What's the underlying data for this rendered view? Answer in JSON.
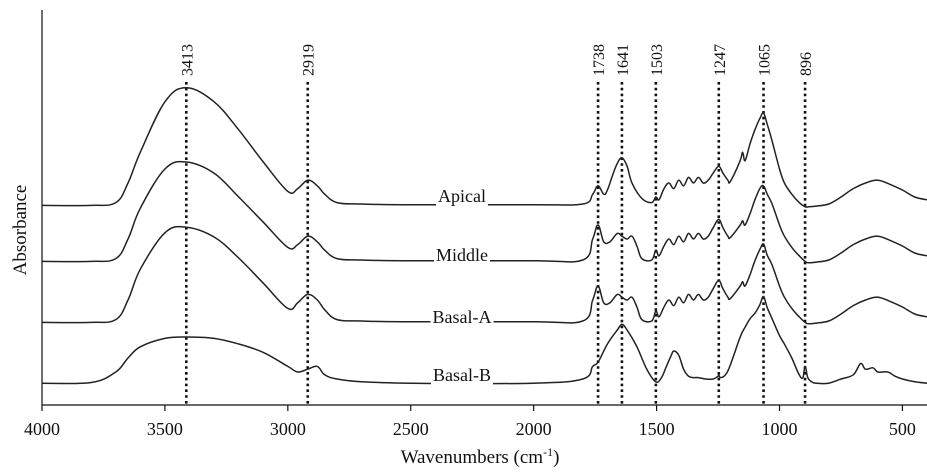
{
  "chart_data": {
    "type": "line",
    "xlabel": "Wavenumbers (cm",
    "xlabel_sup": "-1",
    "xlabel_tail": ")",
    "ylabel": "Absorbance",
    "xlim": [
      4000,
      400
    ],
    "x_reversed": true,
    "x_ticks": [
      4000,
      3500,
      3000,
      2500,
      2000,
      1500,
      1000,
      500
    ],
    "peaks": [
      3413,
      2919,
      1738,
      1641,
      1503,
      1247,
      1065,
      896
    ],
    "grid": false,
    "series": [
      {
        "name": "Apical",
        "points": [
          [
            4000,
            0.04
          ],
          [
            3800,
            0.04
          ],
          [
            3700,
            0.06
          ],
          [
            3650,
            0.2
          ],
          [
            3600,
            0.42
          ],
          [
            3500,
            0.78
          ],
          [
            3413,
            0.88
          ],
          [
            3300,
            0.78
          ],
          [
            3200,
            0.58
          ],
          [
            3100,
            0.35
          ],
          [
            3000,
            0.14
          ],
          [
            2960,
            0.16
          ],
          [
            2919,
            0.22
          ],
          [
            2880,
            0.18
          ],
          [
            2850,
            0.12
          ],
          [
            2800,
            0.06
          ],
          [
            2700,
            0.05
          ],
          [
            2500,
            0.045
          ],
          [
            2000,
            0.045
          ],
          [
            1800,
            0.05
          ],
          [
            1760,
            0.12
          ],
          [
            1738,
            0.18
          ],
          [
            1715,
            0.12
          ],
          [
            1700,
            0.15
          ],
          [
            1680,
            0.25
          ],
          [
            1660,
            0.34
          ],
          [
            1641,
            0.38
          ],
          [
            1620,
            0.32
          ],
          [
            1600,
            0.2
          ],
          [
            1560,
            0.09
          ],
          [
            1520,
            0.06
          ],
          [
            1503,
            0.1
          ],
          [
            1490,
            0.08
          ],
          [
            1470,
            0.16
          ],
          [
            1450,
            0.2
          ],
          [
            1430,
            0.16
          ],
          [
            1410,
            0.22
          ],
          [
            1390,
            0.18
          ],
          [
            1370,
            0.24
          ],
          [
            1350,
            0.2
          ],
          [
            1330,
            0.24
          ],
          [
            1310,
            0.2
          ],
          [
            1290,
            0.22
          ],
          [
            1270,
            0.27
          ],
          [
            1247,
            0.32
          ],
          [
            1230,
            0.27
          ],
          [
            1210,
            0.22
          ],
          [
            1200,
            0.21
          ],
          [
            1160,
            0.36
          ],
          [
            1150,
            0.42
          ],
          [
            1140,
            0.36
          ],
          [
            1120,
            0.48
          ],
          [
            1100,
            0.58
          ],
          [
            1080,
            0.66
          ],
          [
            1065,
            0.7
          ],
          [
            1050,
            0.62
          ],
          [
            1030,
            0.5
          ],
          [
            1000,
            0.3
          ],
          [
            980,
            0.2
          ],
          [
            950,
            0.12
          ],
          [
            920,
            0.06
          ],
          [
            896,
            0.03
          ],
          [
            880,
            0.03
          ],
          [
            850,
            0.035
          ],
          [
            800,
            0.05
          ],
          [
            750,
            0.1
          ],
          [
            700,
            0.16
          ],
          [
            650,
            0.2
          ],
          [
            600,
            0.22
          ],
          [
            550,
            0.19
          ],
          [
            500,
            0.15
          ],
          [
            450,
            0.1
          ],
          [
            400,
            0.08
          ]
        ]
      },
      {
        "name": "Middle",
        "points": [
          [
            4000,
            0.04
          ],
          [
            3800,
            0.04
          ],
          [
            3700,
            0.06
          ],
          [
            3650,
            0.2
          ],
          [
            3600,
            0.42
          ],
          [
            3500,
            0.7
          ],
          [
            3413,
            0.75
          ],
          [
            3300,
            0.67
          ],
          [
            3200,
            0.5
          ],
          [
            3100,
            0.32
          ],
          [
            3000,
            0.14
          ],
          [
            2960,
            0.16
          ],
          [
            2919,
            0.22
          ],
          [
            2880,
            0.18
          ],
          [
            2850,
            0.12
          ],
          [
            2800,
            0.06
          ],
          [
            2700,
            0.05
          ],
          [
            2500,
            0.045
          ],
          [
            2000,
            0.045
          ],
          [
            1800,
            0.05
          ],
          [
            1760,
            0.2
          ],
          [
            1738,
            0.3
          ],
          [
            1715,
            0.18
          ],
          [
            1690,
            0.18
          ],
          [
            1660,
            0.24
          ],
          [
            1641,
            0.22
          ],
          [
            1620,
            0.2
          ],
          [
            1600,
            0.22
          ],
          [
            1580,
            0.15
          ],
          [
            1560,
            0.06
          ],
          [
            1520,
            0.05
          ],
          [
            1503,
            0.12
          ],
          [
            1490,
            0.08
          ],
          [
            1470,
            0.15
          ],
          [
            1450,
            0.2
          ],
          [
            1430,
            0.16
          ],
          [
            1410,
            0.22
          ],
          [
            1390,
            0.18
          ],
          [
            1370,
            0.24
          ],
          [
            1350,
            0.2
          ],
          [
            1330,
            0.24
          ],
          [
            1310,
            0.2
          ],
          [
            1290,
            0.22
          ],
          [
            1270,
            0.28
          ],
          [
            1247,
            0.34
          ],
          [
            1230,
            0.28
          ],
          [
            1210,
            0.22
          ],
          [
            1200,
            0.21
          ],
          [
            1160,
            0.3
          ],
          [
            1150,
            0.33
          ],
          [
            1140,
            0.3
          ],
          [
            1120,
            0.38
          ],
          [
            1100,
            0.48
          ],
          [
            1080,
            0.56
          ],
          [
            1065,
            0.58
          ],
          [
            1050,
            0.52
          ],
          [
            1030,
            0.45
          ],
          [
            1000,
            0.3
          ],
          [
            980,
            0.22
          ],
          [
            950,
            0.14
          ],
          [
            920,
            0.08
          ],
          [
            896,
            0.04
          ],
          [
            880,
            0.03
          ],
          [
            850,
            0.035
          ],
          [
            800,
            0.05
          ],
          [
            750,
            0.1
          ],
          [
            700,
            0.16
          ],
          [
            650,
            0.2
          ],
          [
            600,
            0.22
          ],
          [
            550,
            0.19
          ],
          [
            500,
            0.15
          ],
          [
            450,
            0.1
          ],
          [
            400,
            0.08
          ]
        ]
      },
      {
        "name": "Basal-A",
        "points": [
          [
            4000,
            0.04
          ],
          [
            3800,
            0.04
          ],
          [
            3700,
            0.06
          ],
          [
            3650,
            0.2
          ],
          [
            3600,
            0.42
          ],
          [
            3500,
            0.68
          ],
          [
            3413,
            0.72
          ],
          [
            3300,
            0.65
          ],
          [
            3200,
            0.5
          ],
          [
            3100,
            0.32
          ],
          [
            3000,
            0.14
          ],
          [
            2960,
            0.18
          ],
          [
            2919,
            0.24
          ],
          [
            2880,
            0.2
          ],
          [
            2850,
            0.13
          ],
          [
            2800,
            0.06
          ],
          [
            2700,
            0.05
          ],
          [
            2500,
            0.045
          ],
          [
            2000,
            0.045
          ],
          [
            1800,
            0.05
          ],
          [
            1760,
            0.2
          ],
          [
            1738,
            0.3
          ],
          [
            1715,
            0.18
          ],
          [
            1690,
            0.18
          ],
          [
            1660,
            0.24
          ],
          [
            1641,
            0.22
          ],
          [
            1620,
            0.2
          ],
          [
            1600,
            0.22
          ],
          [
            1580,
            0.15
          ],
          [
            1560,
            0.06
          ],
          [
            1520,
            0.05
          ],
          [
            1503,
            0.12
          ],
          [
            1490,
            0.08
          ],
          [
            1470,
            0.15
          ],
          [
            1450,
            0.2
          ],
          [
            1430,
            0.16
          ],
          [
            1410,
            0.22
          ],
          [
            1390,
            0.18
          ],
          [
            1370,
            0.24
          ],
          [
            1350,
            0.2
          ],
          [
            1330,
            0.24
          ],
          [
            1310,
            0.2
          ],
          [
            1290,
            0.22
          ],
          [
            1270,
            0.28
          ],
          [
            1247,
            0.34
          ],
          [
            1230,
            0.28
          ],
          [
            1210,
            0.22
          ],
          [
            1200,
            0.21
          ],
          [
            1160,
            0.3
          ],
          [
            1150,
            0.33
          ],
          [
            1140,
            0.3
          ],
          [
            1120,
            0.38
          ],
          [
            1100,
            0.48
          ],
          [
            1080,
            0.56
          ],
          [
            1065,
            0.6
          ],
          [
            1050,
            0.52
          ],
          [
            1030,
            0.45
          ],
          [
            1000,
            0.3
          ],
          [
            980,
            0.22
          ],
          [
            950,
            0.14
          ],
          [
            920,
            0.08
          ],
          [
            896,
            0.04
          ],
          [
            880,
            0.03
          ],
          [
            850,
            0.035
          ],
          [
            800,
            0.05
          ],
          [
            750,
            0.1
          ],
          [
            700,
            0.16
          ],
          [
            650,
            0.2
          ],
          [
            600,
            0.22
          ],
          [
            550,
            0.19
          ],
          [
            500,
            0.15
          ],
          [
            450,
            0.1
          ],
          [
            400,
            0.08
          ]
        ]
      },
      {
        "name": "Basal-B",
        "points": [
          [
            4000,
            0.02
          ],
          [
            3800,
            0.025
          ],
          [
            3700,
            0.1
          ],
          [
            3650,
            0.2
          ],
          [
            3600,
            0.28
          ],
          [
            3500,
            0.34
          ],
          [
            3413,
            0.35
          ],
          [
            3300,
            0.34
          ],
          [
            3200,
            0.3
          ],
          [
            3100,
            0.24
          ],
          [
            3000,
            0.14
          ],
          [
            2960,
            0.1
          ],
          [
            2919,
            0.12
          ],
          [
            2880,
            0.14
          ],
          [
            2850,
            0.08
          ],
          [
            2800,
            0.05
          ],
          [
            2700,
            0.03
          ],
          [
            2500,
            0.02
          ],
          [
            2000,
            0.02
          ],
          [
            1800,
            0.05
          ],
          [
            1760,
            0.14
          ],
          [
            1738,
            0.17
          ],
          [
            1700,
            0.3
          ],
          [
            1660,
            0.4
          ],
          [
            1641,
            0.44
          ],
          [
            1620,
            0.4
          ],
          [
            1580,
            0.28
          ],
          [
            1540,
            0.12
          ],
          [
            1503,
            0.03
          ],
          [
            1480,
            0.06
          ],
          [
            1460,
            0.14
          ],
          [
            1440,
            0.22
          ],
          [
            1430,
            0.25
          ],
          [
            1410,
            0.22
          ],
          [
            1390,
            0.12
          ],
          [
            1370,
            0.07
          ],
          [
            1350,
            0.06
          ],
          [
            1330,
            0.06
          ],
          [
            1300,
            0.05
          ],
          [
            1270,
            0.05
          ],
          [
            1250,
            0.07
          ],
          [
            1247,
            0.08
          ],
          [
            1240,
            0.06
          ],
          [
            1220,
            0.08
          ],
          [
            1200,
            0.15
          ],
          [
            1160,
            0.35
          ],
          [
            1140,
            0.42
          ],
          [
            1120,
            0.48
          ],
          [
            1100,
            0.52
          ],
          [
            1080,
            0.58
          ],
          [
            1065,
            0.64
          ],
          [
            1050,
            0.56
          ],
          [
            1030,
            0.48
          ],
          [
            1000,
            0.36
          ],
          [
            980,
            0.3
          ],
          [
            950,
            0.2
          ],
          [
            920,
            0.08
          ],
          [
            905,
            0.06
          ],
          [
            896,
            0.14
          ],
          [
            885,
            0.06
          ],
          [
            870,
            0.03
          ],
          [
            850,
            0.02
          ],
          [
            800,
            0.02
          ],
          [
            750,
            0.05
          ],
          [
            700,
            0.08
          ],
          [
            670,
            0.16
          ],
          [
            650,
            0.12
          ],
          [
            620,
            0.13
          ],
          [
            600,
            0.1
          ],
          [
            560,
            0.1
          ],
          [
            530,
            0.07
          ],
          [
            500,
            0.05
          ],
          [
            450,
            0.03
          ],
          [
            400,
            0.02
          ]
        ]
      }
    ]
  }
}
